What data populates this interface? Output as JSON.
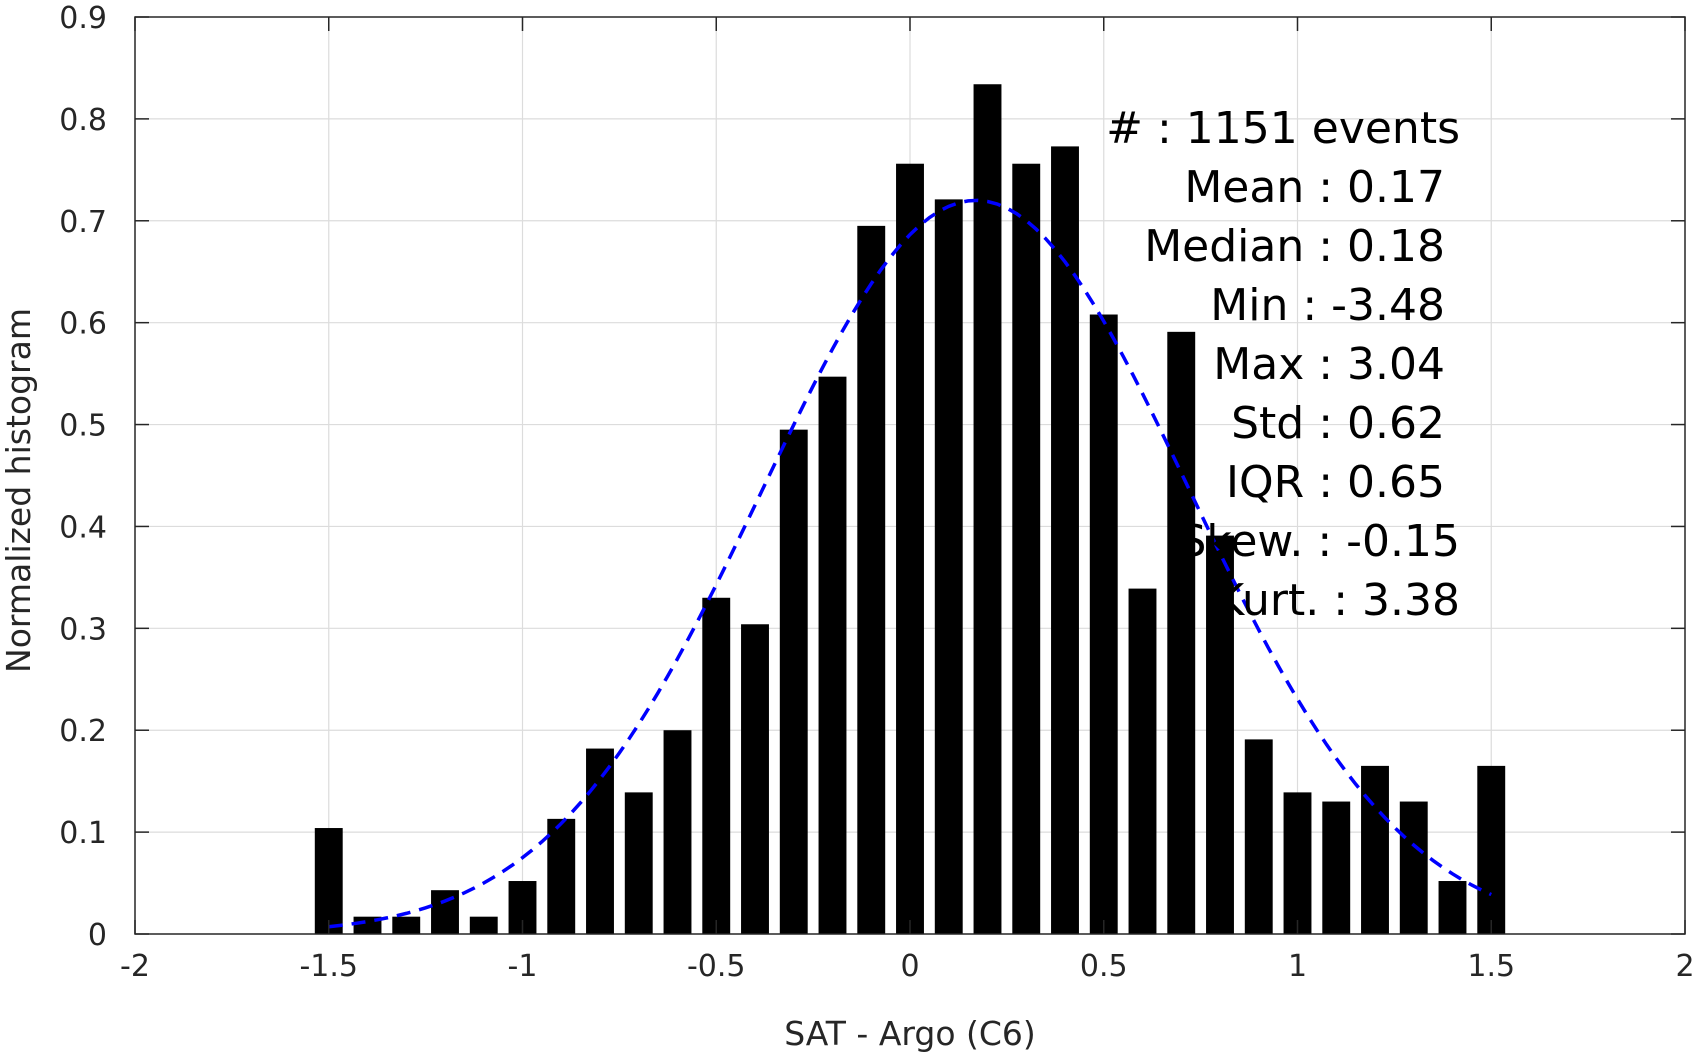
{
  "chart_data": {
    "type": "bar",
    "xlabel": "SAT - Argo (C6)",
    "ylabel": "Normalized histogram",
    "xlim": [
      -2,
      2
    ],
    "ylim": [
      0,
      0.9
    ],
    "xticks": [
      -2,
      -1.5,
      -1,
      -0.5,
      0,
      0.5,
      1,
      1.5,
      2
    ],
    "xtick_labels": [
      "-2",
      "-1.5",
      "-1",
      "-0.5",
      "0",
      "0.5",
      "1",
      "1.5",
      "2"
    ],
    "yticks": [
      0,
      0.1,
      0.2,
      0.3,
      0.4,
      0.5,
      0.6,
      0.7,
      0.8,
      0.9
    ],
    "ytick_labels": [
      "0",
      "0.1",
      "0.2",
      "0.3",
      "0.4",
      "0.5",
      "0.6",
      "0.7",
      "0.8",
      "0.9"
    ],
    "grid": true,
    "bar_color": "#000000",
    "bin_width": 0.1,
    "bins": [
      -1.5,
      -1.4,
      -1.3,
      -1.2,
      -1.1,
      -1.0,
      -0.9,
      -0.8,
      -0.7,
      -0.6,
      -0.5,
      -0.4,
      -0.3,
      -0.2,
      -0.1,
      0.0,
      0.1,
      0.2,
      0.3,
      0.4,
      0.5,
      0.6,
      0.7,
      0.8,
      0.9,
      1.0,
      1.1,
      1.2,
      1.3,
      1.4,
      1.5
    ],
    "values": [
      0.104,
      0.017,
      0.017,
      0.043,
      0.017,
      0.052,
      0.113,
      0.182,
      0.139,
      0.2,
      0.33,
      0.304,
      0.495,
      0.547,
      0.695,
      0.756,
      0.721,
      0.834,
      0.756,
      0.773,
      0.608,
      0.339,
      0.591,
      0.391,
      0.191,
      0.139,
      0.13,
      0.165,
      0.13,
      0.052,
      0.165
    ],
    "fit_curve": {
      "color": "#0000ff",
      "style": "dashed",
      "mean": 0.17,
      "std": 0.55,
      "peak": 0.72,
      "x_range": [
        -1.5,
        1.5
      ]
    }
  },
  "stats": {
    "lines": [
      "#   : 1151 events",
      "Mean : 0.17",
      "Median : 0.18",
      "Min : -3.48",
      "Max : 3.04",
      "Std : 0.62",
      "IQR : 0.65",
      "Skew. : -0.15",
      "Kurt. : 3.38"
    ]
  }
}
